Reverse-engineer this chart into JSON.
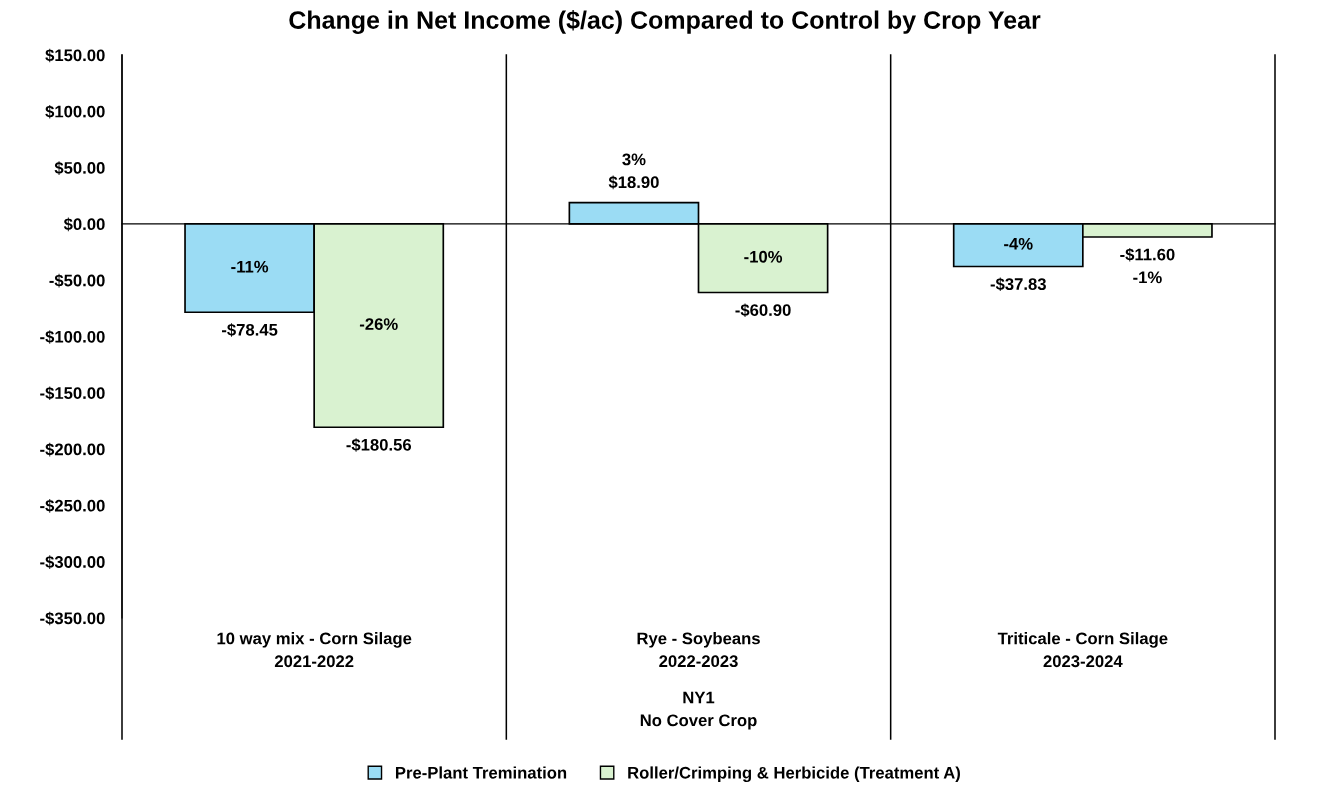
{
  "chart_data": {
    "type": "bar",
    "title": "Change in Net Income ($/ac) Compared to Control by Crop Year",
    "categories": [
      "10 way mix - Corn Silage\n2021-2022",
      "Rye - Soybeans\n2022-2023",
      "Triticale - Corn Silage\n2023-2024"
    ],
    "series": [
      {
        "name": "Pre-Plant Tremination",
        "color": "#9bdcf4",
        "values": [
          -78.45,
          18.9,
          -37.83
        ],
        "value_labels": [
          "-11%\n-$78.45",
          "3%\n$18.90",
          "-4%\n-$37.83"
        ]
      },
      {
        "name": "Roller/Crimping & Herbicide (Treatment A)",
        "color": "#d9f2d0",
        "values": [
          -180.56,
          -60.9,
          -11.6
        ],
        "value_labels": [
          "-26%\n-$180.56",
          "-10%\n-$60.90",
          "-$11.60\n-1%"
        ]
      }
    ],
    "ylim": [
      -350,
      150
    ],
    "yticks": [
      {
        "value": -350,
        "label": "-$350.00"
      },
      {
        "value": -300,
        "label": "-$300.00"
      },
      {
        "value": -250,
        "label": "-$250.00"
      },
      {
        "value": -200,
        "label": "-$200.00"
      },
      {
        "value": -150,
        "label": "-$150.00"
      },
      {
        "value": -100,
        "label": "-$100.00"
      },
      {
        "value": -50,
        "label": "-$50.00"
      },
      {
        "value": 0,
        "label": "$0.00"
      },
      {
        "value": 50,
        "label": "$50.00"
      },
      {
        "value": 100,
        "label": "$100.00"
      },
      {
        "value": 150,
        "label": "$150.00"
      }
    ],
    "annotations": [
      "NY1\nNo Cover Crop"
    ],
    "legend": "bottom",
    "grid": false
  }
}
